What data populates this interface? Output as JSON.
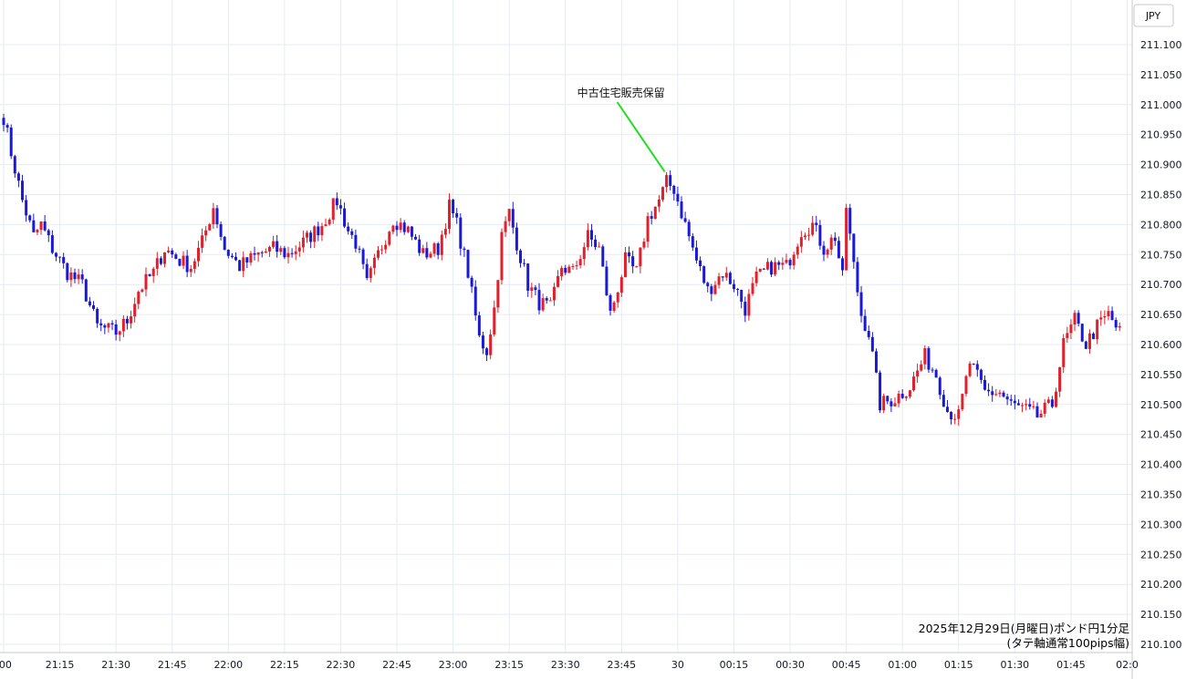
{
  "chart_data": {
    "type": "candlestick",
    "currency_label": "JPY",
    "y_axis": {
      "min": 210.1,
      "max": 211.1,
      "step": 0.05,
      "tick_labels": [
        "211.100",
        "211.050",
        "211.000",
        "210.950",
        "210.900",
        "210.850",
        "210.800",
        "210.750",
        "210.700",
        "210.650",
        "210.600",
        "210.550",
        "210.500",
        "210.450",
        "210.400",
        "210.350",
        "210.300",
        "210.250",
        "210.200",
        "210.150",
        "210.100"
      ]
    },
    "x_axis": {
      "tick_labels": [
        ":00",
        "21:15",
        "21:30",
        "21:45",
        "22:00",
        "22:15",
        "22:30",
        "22:45",
        "23:00",
        "23:15",
        "23:30",
        "23:45",
        "30",
        "00:15",
        "00:30",
        "00:45",
        "01:00",
        "01:15",
        "01:30",
        "01:45",
        "02:0"
      ]
    },
    "grid": true,
    "colors": {
      "up": "#e0202a",
      "down": "#1a1ad6",
      "annotation_line": "#22dd22",
      "grid": "#e6ebf2",
      "axis_line": "#c8c8c8"
    },
    "annotation": {
      "text": "中古住宅販売保留",
      "x_time": "23:57",
      "y_value": 210.885
    },
    "caption_lines": [
      "2025年12月29日(月曜日)ポンド円1分足",
      "(タテ軸通常100pips幅)"
    ],
    "anchors": [
      {
        "t": "21:00",
        "v": 210.98
      },
      {
        "t": "21:02",
        "v": 210.92
      },
      {
        "t": "21:05",
        "v": 210.84
      },
      {
        "t": "21:08",
        "v": 210.78
      },
      {
        "t": "21:10",
        "v": 210.8
      },
      {
        "t": "21:13",
        "v": 210.76
      },
      {
        "t": "21:17",
        "v": 210.72
      },
      {
        "t": "21:21",
        "v": 210.7
      },
      {
        "t": "21:25",
        "v": 210.63
      },
      {
        "t": "21:30",
        "v": 210.62
      },
      {
        "t": "21:33",
        "v": 210.64
      },
      {
        "t": "21:36",
        "v": 210.69
      },
      {
        "t": "21:40",
        "v": 210.72
      },
      {
        "t": "21:43",
        "v": 210.76
      },
      {
        "t": "21:47",
        "v": 210.74
      },
      {
        "t": "21:50",
        "v": 210.73
      },
      {
        "t": "21:53",
        "v": 210.77
      },
      {
        "t": "21:56",
        "v": 210.83
      },
      {
        "t": "21:59",
        "v": 210.76
      },
      {
        "t": "22:03",
        "v": 210.73
      },
      {
        "t": "22:08",
        "v": 210.75
      },
      {
        "t": "22:12",
        "v": 210.76
      },
      {
        "t": "22:16",
        "v": 210.75
      },
      {
        "t": "22:20",
        "v": 210.77
      },
      {
        "t": "22:25",
        "v": 210.8
      },
      {
        "t": "22:29",
        "v": 210.84
      },
      {
        "t": "22:32",
        "v": 210.79
      },
      {
        "t": "22:34",
        "v": 210.77
      },
      {
        "t": "22:37",
        "v": 210.7
      },
      {
        "t": "22:40",
        "v": 210.75
      },
      {
        "t": "22:44",
        "v": 210.81
      },
      {
        "t": "22:48",
        "v": 210.79
      },
      {
        "t": "22:52",
        "v": 210.75
      },
      {
        "t": "22:56",
        "v": 210.76
      },
      {
        "t": "22:59",
        "v": 210.83
      },
      {
        "t": "23:01",
        "v": 210.8
      },
      {
        "t": "23:04",
        "v": 210.72
      },
      {
        "t": "23:07",
        "v": 210.61
      },
      {
        "t": "23:09",
        "v": 210.59
      },
      {
        "t": "23:11",
        "v": 210.66
      },
      {
        "t": "23:13",
        "v": 210.78
      },
      {
        "t": "23:15",
        "v": 210.82
      },
      {
        "t": "23:17",
        "v": 210.77
      },
      {
        "t": "23:20",
        "v": 210.7
      },
      {
        "t": "23:23",
        "v": 210.67
      },
      {
        "t": "23:26",
        "v": 210.66
      },
      {
        "t": "23:29",
        "v": 210.73
      },
      {
        "t": "23:32",
        "v": 210.72
      },
      {
        "t": "23:36",
        "v": 210.78
      },
      {
        "t": "23:39",
        "v": 210.76
      },
      {
        "t": "23:42",
        "v": 210.65
      },
      {
        "t": "23:46",
        "v": 210.74
      },
      {
        "t": "23:49",
        "v": 210.72
      },
      {
        "t": "23:52",
        "v": 210.81
      },
      {
        "t": "23:55",
        "v": 210.84
      },
      {
        "t": "23:57",
        "v": 210.87
      },
      {
        "t": "23:59",
        "v": 210.86
      },
      {
        "t": "00:02",
        "v": 210.8
      },
      {
        "t": "00:05",
        "v": 210.74
      },
      {
        "t": "00:08",
        "v": 210.69
      },
      {
        "t": "00:12",
        "v": 210.72
      },
      {
        "t": "00:15",
        "v": 210.7
      },
      {
        "t": "00:18",
        "v": 210.66
      },
      {
        "t": "00:21",
        "v": 210.71
      },
      {
        "t": "00:25",
        "v": 210.73
      },
      {
        "t": "00:29",
        "v": 210.73
      },
      {
        "t": "00:33",
        "v": 210.79
      },
      {
        "t": "00:36",
        "v": 210.8
      },
      {
        "t": "00:39",
        "v": 210.76
      },
      {
        "t": "00:42",
        "v": 210.78
      },
      {
        "t": "00:44",
        "v": 210.71
      },
      {
        "t": "00:45",
        "v": 210.83
      },
      {
        "t": "00:47",
        "v": 210.73
      },
      {
        "t": "00:49",
        "v": 210.65
      },
      {
        "t": "00:51",
        "v": 210.62
      },
      {
        "t": "00:54",
        "v": 210.5
      },
      {
        "t": "00:58",
        "v": 210.51
      },
      {
        "t": "01:02",
        "v": 210.53
      },
      {
        "t": "01:06",
        "v": 210.58
      },
      {
        "t": "01:09",
        "v": 210.55
      },
      {
        "t": "01:12",
        "v": 210.49
      },
      {
        "t": "01:15",
        "v": 210.48
      },
      {
        "t": "01:18",
        "v": 210.57
      },
      {
        "t": "01:22",
        "v": 210.52
      },
      {
        "t": "01:26",
        "v": 210.52
      },
      {
        "t": "01:29",
        "v": 210.5
      },
      {
        "t": "01:33",
        "v": 210.49
      },
      {
        "t": "01:36",
        "v": 210.48
      },
      {
        "t": "01:40",
        "v": 210.5
      },
      {
        "t": "01:43",
        "v": 210.6
      },
      {
        "t": "01:46",
        "v": 210.64
      },
      {
        "t": "01:49",
        "v": 210.6
      },
      {
        "t": "01:52",
        "v": 210.63
      },
      {
        "t": "01:55",
        "v": 210.65
      },
      {
        "t": "01:58",
        "v": 210.62
      }
    ]
  }
}
